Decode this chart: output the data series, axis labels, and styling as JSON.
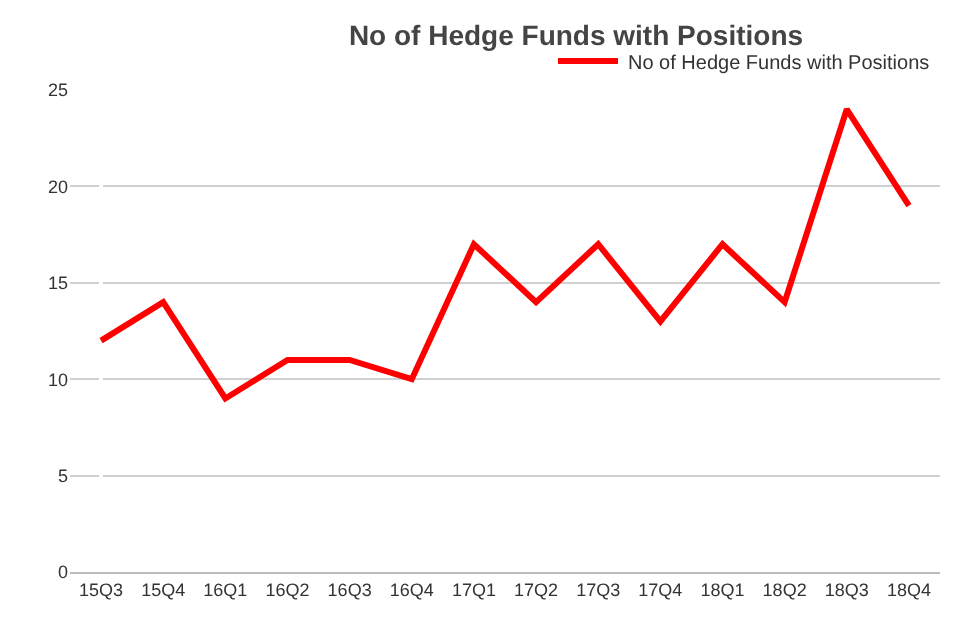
{
  "chart_data": {
    "type": "line",
    "title": "No of Hedge Funds with Positions",
    "categories": [
      "15Q3",
      "15Q4",
      "16Q1",
      "16Q2",
      "16Q3",
      "16Q4",
      "17Q1",
      "17Q2",
      "17Q3",
      "17Q4",
      "18Q1",
      "18Q2",
      "18Q3",
      "18Q4"
    ],
    "series": [
      {
        "name": "No of Hedge Funds with Positions",
        "color": "#ff0000",
        "values": [
          12,
          14,
          9,
          11,
          11,
          10,
          17,
          14,
          17,
          13,
          17,
          14,
          24,
          19
        ]
      }
    ],
    "ylim": [
      0,
      25
    ],
    "yticks": [
      0,
      5,
      10,
      15,
      20,
      25
    ],
    "grid": "y",
    "legend": "top right",
    "marker": "none",
    "line_style": "solid"
  }
}
